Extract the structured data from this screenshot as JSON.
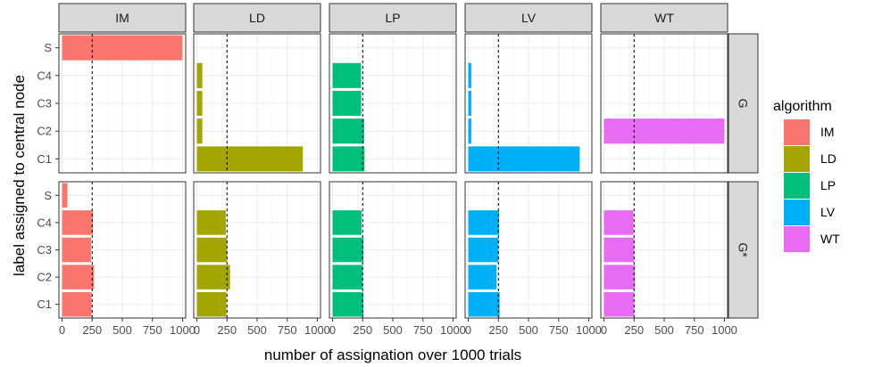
{
  "chart_data": {
    "type": "bar",
    "orientation": "horizontal",
    "facet_cols": [
      "IM",
      "LD",
      "LP",
      "LV",
      "WT"
    ],
    "facet_rows": [
      "G",
      "G*"
    ],
    "categories": [
      "C1",
      "C2",
      "C3",
      "C4",
      "S"
    ],
    "xlabel": "number of assignation over 1000 trials",
    "ylabel": "label assigned to central node",
    "xlim": [
      0,
      1000
    ],
    "x_ticks": [
      0,
      250,
      500,
      750,
      1000
    ],
    "x_tick_labels": [
      "0",
      "250",
      "500",
      "750",
      "1000"
    ],
    "reference_line_x": 250,
    "legend_title": "algorithm",
    "legend": [
      {
        "name": "IM",
        "color": "#F8766D"
      },
      {
        "name": "LD",
        "color": "#A3A500"
      },
      {
        "name": "LP",
        "color": "#00BF7D"
      },
      {
        "name": "LV",
        "color": "#00B0F6"
      },
      {
        "name": "WT",
        "color": "#E76BF3"
      }
    ],
    "panels": {
      "G": {
        "IM": {
          "C1": 0,
          "C2": 0,
          "C3": 0,
          "C4": 0,
          "S": 1000
        },
        "LD": {
          "C1": 880,
          "C2": 45,
          "C3": 45,
          "C4": 45,
          "S": 0
        },
        "LP": {
          "C1": 265,
          "C2": 262,
          "C3": 237,
          "C4": 236,
          "S": 0
        },
        "LV": {
          "C1": 925,
          "C2": 25,
          "C3": 25,
          "C4": 25,
          "S": 0
        },
        "WT": {
          "C1": 0,
          "C2": 1000,
          "C3": 0,
          "C4": 0,
          "S": 0
        }
      },
      "G*": {
        "IM": {
          "C1": 245,
          "C2": 265,
          "C3": 240,
          "C4": 255,
          "S": 45
        },
        "LD": {
          "C1": 245,
          "C2": 275,
          "C3": 250,
          "C4": 240,
          "S": 0
        },
        "LP": {
          "C1": 255,
          "C2": 250,
          "C3": 255,
          "C4": 240,
          "S": 0
        },
        "LV": {
          "C1": 260,
          "C2": 235,
          "C3": 250,
          "C4": 255,
          "S": 0
        },
        "WT": {
          "C1": 250,
          "C2": 255,
          "C3": 250,
          "C4": 245,
          "S": 0
        }
      }
    }
  }
}
